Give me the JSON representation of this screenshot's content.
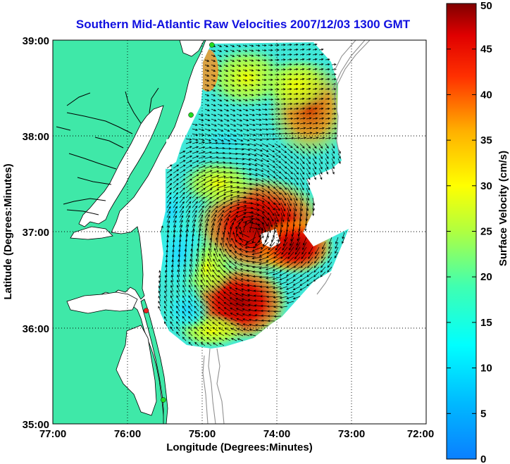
{
  "title": "Southern Mid-Atlantic Raw Velocities 2007/12/03 1300 GMT",
  "map": {
    "xlabel": "Longitude (Degrees:Minutes)",
    "ylabel": "Latitude (Degrees:Minutes)",
    "x_ticks": [
      "77:00",
      "76:00",
      "75:00",
      "74:00",
      "73:00",
      "72:00"
    ],
    "y_ticks": [
      "39:00",
      "38:00",
      "37:00",
      "36:00",
      "35:00"
    ],
    "lon_range": [
      -77,
      -72
    ],
    "lat_range": [
      35,
      39
    ],
    "grid": "dotted",
    "land_color": "#3fe8a8",
    "water_color": "#ffffff",
    "coastline_color": "#000000",
    "bathymetry_color": "#909090"
  },
  "colorbar": {
    "label": "Surface Velocity (cm/s)",
    "ticks": [
      "50",
      "45",
      "40",
      "35",
      "30",
      "25",
      "20",
      "15",
      "10",
      "5",
      "0"
    ],
    "range": [
      0,
      50
    ],
    "colormap": "jet"
  },
  "stations": [
    {
      "color": "#22dd22",
      "lon": -74.87,
      "lat": 38.95
    },
    {
      "color": "#22dd22",
      "lon": -75.15,
      "lat": 38.22
    },
    {
      "color": "#ee2222",
      "lon": -75.75,
      "lat": 36.18
    },
    {
      "color": "#22dd22",
      "lon": -75.52,
      "lat": 35.25
    }
  ]
}
